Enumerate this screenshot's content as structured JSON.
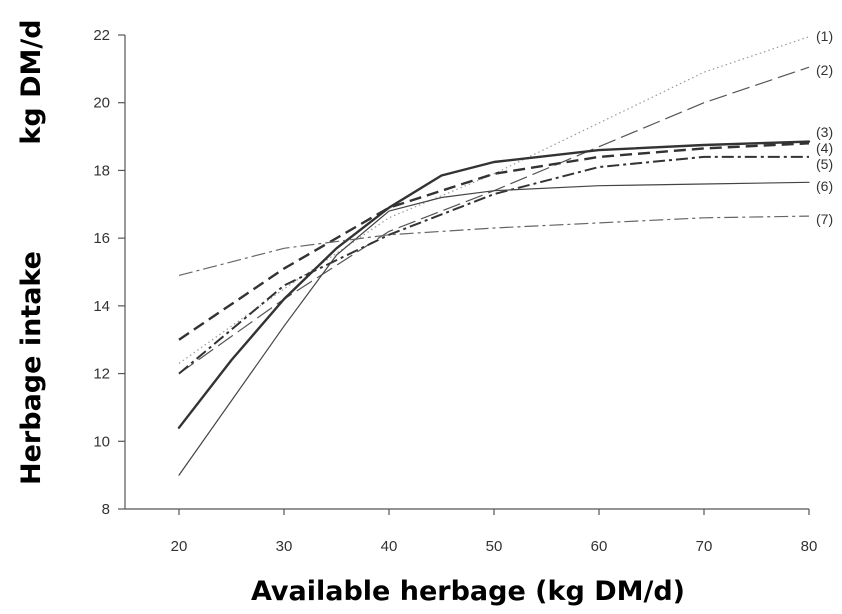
{
  "chart_data": {
    "type": "line",
    "xlabel": "Available herbage (kg DM/d)",
    "ylabel_main": "Herbage intake",
    "ylabel_unit": "kg DM/d",
    "xlim": [
      15,
      80
    ],
    "ylim": [
      8,
      22
    ],
    "xticks": [
      20,
      30,
      40,
      50,
      60,
      70,
      80
    ],
    "yticks": [
      8,
      10,
      12,
      14,
      16,
      18,
      20,
      22
    ],
    "grid": false,
    "series": [
      {
        "name": "(1)",
        "style": "dotted",
        "width": 1.2,
        "color": "#999999",
        "points": [
          [
            20,
            12.3
          ],
          [
            30,
            14.5
          ],
          [
            40,
            16.6
          ],
          [
            50,
            17.9
          ],
          [
            60,
            19.4
          ],
          [
            70,
            20.9
          ],
          [
            80,
            21.95
          ]
        ]
      },
      {
        "name": "(2)",
        "style": "longdash",
        "width": 1.2,
        "color": "#555555",
        "points": [
          [
            20,
            12.0
          ],
          [
            30,
            14.2
          ],
          [
            40,
            16.2
          ],
          [
            50,
            17.4
          ],
          [
            60,
            18.7
          ],
          [
            70,
            20.0
          ],
          [
            80,
            21.05
          ]
        ]
      },
      {
        "name": "(3)",
        "style": "solid",
        "width": 2.4,
        "color": "#333333",
        "points": [
          [
            20,
            10.4
          ],
          [
            25,
            12.4
          ],
          [
            30,
            14.2
          ],
          [
            35,
            15.7
          ],
          [
            40,
            16.9
          ],
          [
            45,
            17.85
          ],
          [
            50,
            18.25
          ],
          [
            60,
            18.6
          ],
          [
            70,
            18.75
          ],
          [
            80,
            18.85
          ]
        ]
      },
      {
        "name": "(4)",
        "style": "dash-bold",
        "width": 2.4,
        "color": "#333333",
        "points": [
          [
            20,
            13.0
          ],
          [
            30,
            15.1
          ],
          [
            40,
            16.9
          ],
          [
            50,
            17.9
          ],
          [
            60,
            18.4
          ],
          [
            70,
            18.65
          ],
          [
            80,
            18.8
          ]
        ]
      },
      {
        "name": "(5)",
        "style": "dashdot-bold",
        "width": 2.0,
        "color": "#333333",
        "points": [
          [
            20,
            12.0
          ],
          [
            30,
            14.6
          ],
          [
            40,
            16.1
          ],
          [
            50,
            17.3
          ],
          [
            60,
            18.1
          ],
          [
            70,
            18.4
          ],
          [
            80,
            18.4
          ]
        ]
      },
      {
        "name": "(6)",
        "style": "solid",
        "width": 1.2,
        "color": "#444444",
        "points": [
          [
            20,
            9.0
          ],
          [
            30,
            13.4
          ],
          [
            35,
            15.5
          ],
          [
            40,
            16.8
          ],
          [
            45,
            17.2
          ],
          [
            50,
            17.4
          ],
          [
            60,
            17.55
          ],
          [
            70,
            17.6
          ],
          [
            80,
            17.65
          ]
        ]
      },
      {
        "name": "(7)",
        "style": "dashdot-thin",
        "width": 1.2,
        "color": "#666666",
        "points": [
          [
            20,
            14.9
          ],
          [
            30,
            15.7
          ],
          [
            40,
            16.1
          ],
          [
            50,
            16.3
          ],
          [
            60,
            16.45
          ],
          [
            70,
            16.6
          ],
          [
            80,
            16.65
          ]
        ]
      }
    ]
  }
}
